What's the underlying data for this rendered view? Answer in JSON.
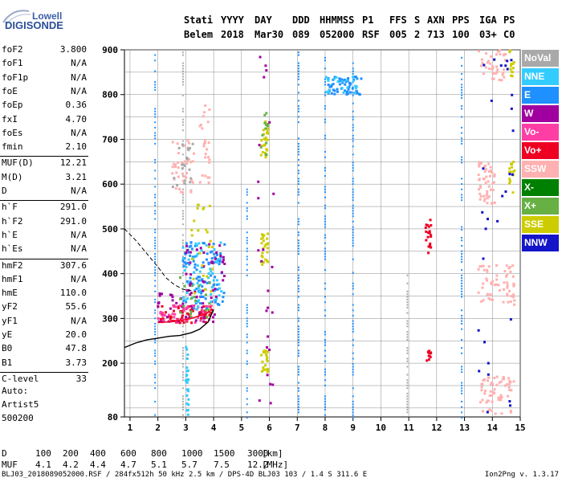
{
  "logo": {
    "line1": "Lowell",
    "line2": "DIGISONDE"
  },
  "header": {
    "labels": [
      "Stati",
      "YYYY",
      "DAY",
      "DDD",
      "HHMMSS",
      "P1",
      "FFS",
      "S",
      "AXN",
      "PPS",
      "IGA",
      "PS"
    ],
    "values": [
      "Belem",
      "2018",
      "Mar30",
      "089",
      "052000",
      "RSF",
      "005",
      "2",
      "713",
      "100",
      "03+",
      "C0"
    ]
  },
  "params": [
    {
      "k": "foF2",
      "v": "3.800"
    },
    {
      "k": "foF1",
      "v": "N/A"
    },
    {
      "k": "foF1p",
      "v": "N/A"
    },
    {
      "k": "foE",
      "v": "N/A"
    },
    {
      "k": "foEp",
      "v": "0.36"
    },
    {
      "k": "fxI",
      "v": "4.70"
    },
    {
      "k": "foEs",
      "v": "N/A"
    },
    {
      "k": "fmin",
      "v": "2.10"
    },
    {
      "k": "MUF(D)",
      "v": "12.21"
    },
    {
      "k": "M(D)",
      "v": "3.21"
    },
    {
      "k": "D",
      "v": "N/A"
    },
    {
      "k": "h`F",
      "v": "291.0"
    },
    {
      "k": "h`F2",
      "v": "291.0"
    },
    {
      "k": "h`E",
      "v": "N/A"
    },
    {
      "k": "h`Es",
      "v": "N/A"
    },
    {
      "k": "hmF2",
      "v": "307.6"
    },
    {
      "k": "hmF1",
      "v": "N/A"
    },
    {
      "k": "hmE",
      "v": "110.0"
    },
    {
      "k": "yF2",
      "v": "55.6"
    },
    {
      "k": "yF1",
      "v": "N/A"
    },
    {
      "k": "yE",
      "v": "20.0"
    },
    {
      "k": "B0",
      "v": "47.8"
    },
    {
      "k": "B1",
      "v": "3.73"
    },
    {
      "k": "C-level",
      "v": "33"
    }
  ],
  "auto": {
    "line1": "Auto:",
    "line2": "Artist5",
    "line3": "500200"
  },
  "legend": [
    {
      "label": "NoVal",
      "color": "#a9a9a9"
    },
    {
      "label": "NNE",
      "color": "#33ccff"
    },
    {
      "label": "E",
      "color": "#1e90ff"
    },
    {
      "label": "W",
      "color": "#a000a0"
    },
    {
      "label": "Vo-",
      "color": "#ff3ea5"
    },
    {
      "label": "Vo+",
      "color": "#ee0022"
    },
    {
      "label": "SSW",
      "color": "#ffb0b0"
    },
    {
      "label": "X-",
      "color": "#008000"
    },
    {
      "label": "X+",
      "color": "#66b044"
    },
    {
      "label": "SSE",
      "color": "#cccc00"
    },
    {
      "label": "NNW",
      "color": "#1414c8"
    }
  ],
  "muf_table": {
    "d_label": "D",
    "d_values": [
      "100",
      "200",
      "400",
      "600",
      "800",
      "1000",
      "1500",
      "3000"
    ],
    "d_unit": "[km]",
    "m_label": "MUF",
    "m_values": [
      "4.1",
      "4.2",
      "4.4",
      "4.7",
      "5.1",
      "5.7",
      "7.5",
      "12.2"
    ],
    "m_unit": "[MHz]"
  },
  "footer": {
    "left": "BLJ03_2018089052000.RSF / 284fx512h 50 kHz 2.5 km / DPS-4D BLJ03 103 / 1.4 S 311.6 E",
    "right": "Ion2Png v. 1.3.17"
  },
  "chart_data": {
    "type": "scatter",
    "xlim": [
      0.8,
      15
    ],
    "ylim": [
      80,
      900
    ],
    "xticks": [
      "1",
      "2",
      "3",
      "4",
      "5",
      "6",
      "7",
      "8",
      "9",
      "10",
      "11",
      "12",
      "13",
      "14",
      "15"
    ],
    "yticks": [
      "80",
      "200",
      "300",
      "400",
      "500",
      "600",
      "700",
      "800",
      "900"
    ],
    "grid": true,
    "legend_position": "right",
    "clusters": [
      {
        "color": "#ee0022",
        "x": [
          2.0,
          4.0
        ],
        "y": [
          290,
          330
        ],
        "n": 60
      },
      {
        "color": "#ff3ea5",
        "x": [
          2.0,
          4.0
        ],
        "y": [
          290,
          330
        ],
        "n": 50
      },
      {
        "color": "#a000a0",
        "x": [
          2.0,
          4.1
        ],
        "y": [
          290,
          360
        ],
        "n": 40
      },
      {
        "color": "#1e90ff",
        "x": [
          2.9,
          4.4
        ],
        "y": [
          320,
          470
        ],
        "n": 90
      },
      {
        "color": "#33ccff",
        "x": [
          2.9,
          4.4
        ],
        "y": [
          320,
          470
        ],
        "n": 60
      },
      {
        "color": "#a000a0",
        "x": [
          3.0,
          4.4
        ],
        "y": [
          340,
          470
        ],
        "n": 40
      },
      {
        "color": "#66b044",
        "x": [
          2.8,
          3.9
        ],
        "y": [
          300,
          400
        ],
        "n": 20
      },
      {
        "color": "#cccc00",
        "x": [
          3.2,
          4.0
        ],
        "y": [
          330,
          560
        ],
        "n": 25
      },
      {
        "color": "#ffb0b0",
        "x": [
          2.5,
          3.3
        ],
        "y": [
          580,
          700
        ],
        "n": 40
      },
      {
        "color": "#a9a9a9",
        "x": [
          2.5,
          3.3
        ],
        "y": [
          580,
          700
        ],
        "n": 20
      },
      {
        "color": "#ffb0b0",
        "x": [
          3.5,
          3.9
        ],
        "y": [
          600,
          780
        ],
        "n": 25
      },
      {
        "color": "#1e90ff",
        "x": [
          8.0,
          9.3
        ],
        "y": [
          800,
          840
        ],
        "n": 55
      },
      {
        "color": "#33ccff",
        "x": [
          8.0,
          9.3
        ],
        "y": [
          800,
          840
        ],
        "n": 20
      },
      {
        "color": "#cccc00",
        "x": [
          5.7,
          5.95
        ],
        "y": [
          660,
          760
        ],
        "n": 25
      },
      {
        "color": "#66b044",
        "x": [
          5.7,
          5.95
        ],
        "y": [
          660,
          760
        ],
        "n": 12
      },
      {
        "color": "#cccc00",
        "x": [
          5.7,
          5.95
        ],
        "y": [
          420,
          500
        ],
        "n": 25
      },
      {
        "color": "#cccc00",
        "x": [
          5.7,
          5.95
        ],
        "y": [
          180,
          230
        ],
        "n": 20
      },
      {
        "color": "#ffb0b0",
        "x": [
          13.5,
          14.1
        ],
        "y": [
          550,
          650
        ],
        "n": 50
      },
      {
        "color": "#ffb0b0",
        "x": [
          13.5,
          14.8
        ],
        "y": [
          330,
          420
        ],
        "n": 60
      },
      {
        "color": "#ffb0b0",
        "x": [
          13.5,
          14.8
        ],
        "y": [
          85,
          170
        ],
        "n": 60
      },
      {
        "color": "#ffb0b0",
        "x": [
          13.5,
          14.5
        ],
        "y": [
          830,
          900
        ],
        "n": 40
      },
      {
        "color": "#cccc00",
        "x": [
          14.6,
          14.8
        ],
        "y": [
          580,
          650
        ],
        "n": 15
      },
      {
        "color": "#cccc00",
        "x": [
          14.6,
          14.8
        ],
        "y": [
          840,
          900
        ],
        "n": 12
      },
      {
        "color": "#1414c8",
        "x": [
          13.5,
          14.8
        ],
        "y": [
          85,
          900
        ],
        "n": 30
      },
      {
        "color": "#ee0022",
        "x": [
          11.6,
          11.8
        ],
        "y": [
          440,
          520
        ],
        "n": 20
      },
      {
        "color": "#ee0022",
        "x": [
          11.6,
          11.8
        ],
        "y": [
          200,
          240
        ],
        "n": 12
      },
      {
        "color": "#a000a0",
        "x": [
          5.6,
          6.3
        ],
        "y": [
          100,
          900
        ],
        "n": 25
      },
      {
        "color": "#33ccff",
        "x": [
          3.0,
          3.1
        ],
        "y": [
          80,
          240
        ],
        "n": 25
      }
    ],
    "vertical_streaks": [
      {
        "x": 1.9,
        "y": [
          80,
          900
        ],
        "color": "#1e90ff"
      },
      {
        "x": 2.9,
        "y": [
          80,
          900
        ],
        "color": "#a9a9a9"
      },
      {
        "x": 5.2,
        "y": [
          80,
          600
        ],
        "color": "#1e90ff"
      },
      {
        "x": 7.05,
        "y": [
          80,
          900
        ],
        "color": "#1e90ff"
      },
      {
        "x": 8.0,
        "y": [
          80,
          900
        ],
        "color": "#1e90ff"
      },
      {
        "x": 9.0,
        "y": [
          80,
          900
        ],
        "color": "#1e90ff"
      },
      {
        "x": 10.95,
        "y": [
          80,
          400
        ],
        "color": "#a9a9a9"
      },
      {
        "x": 12.9,
        "y": [
          80,
          900
        ],
        "color": "#1e90ff"
      }
    ],
    "trace_dashed": {
      "x": [
        0.8,
        1.2,
        1.6,
        2.0,
        2.3,
        2.6,
        2.9,
        3.2
      ],
      "y": [
        500,
        475,
        445,
        415,
        390,
        375,
        365,
        362
      ]
    },
    "trace_solid": {
      "x": [
        0.8,
        1.2,
        1.6,
        2.0,
        2.4,
        2.8,
        3.2,
        3.5,
        3.8,
        4.0
      ],
      "y": [
        235,
        245,
        252,
        256,
        260,
        262,
        268,
        276,
        292,
        320
      ]
    },
    "trace_red": {
      "x": [
        2.0,
        2.3,
        2.6,
        2.9,
        3.2,
        3.5,
        3.8
      ],
      "y": [
        291,
        292,
        294,
        296,
        300,
        306,
        313
      ]
    }
  }
}
